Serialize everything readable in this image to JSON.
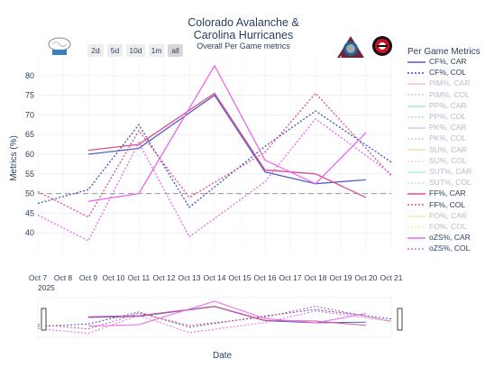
{
  "title_line1": "Colorado Avalanche &",
  "title_line2": "Carolina Hurricanes",
  "subtitle": "Overall Per Game metrics",
  "buttons": [
    {
      "label": "2d",
      "active": false
    },
    {
      "label": "5d",
      "active": false
    },
    {
      "label": "10d",
      "active": false
    },
    {
      "label": "1m",
      "active": false
    },
    {
      "label": "all",
      "active": true
    }
  ],
  "logo_text": "SEAN ELDER",
  "legend_title": "Per Game Metrics",
  "ylabel": "Metrics (%)",
  "xlabel": "Date",
  "year_label": "2025",
  "colors": {
    "car_cf": "#5660c2",
    "col_cf": "#4051c6",
    "pim": "#ee8888",
    "pp": "#55ccaa",
    "pk": "#c888dd",
    "su": "#f4b070",
    "sut": "#55ddcc",
    "ff": "#d85090",
    "fo": "#f0d070",
    "ozs": "#ee66ee"
  },
  "chart_data": {
    "type": "line",
    "x": [
      "Oct 7",
      "Oct 8",
      "Oct 9",
      "Oct 10",
      "Oct 11",
      "Oct 12",
      "Oct 13",
      "Oct 14",
      "Oct 15",
      "Oct 16",
      "Oct 17",
      "Oct 18",
      "Oct 19",
      "Oct 20",
      "Oct 21"
    ],
    "ylim": [
      35,
      85
    ],
    "yticks": [
      40,
      45,
      50,
      55,
      60,
      65,
      70,
      75,
      80
    ],
    "reference_line": 50,
    "series": [
      {
        "name": "CF%, CAR",
        "color": "#5660c2",
        "dash": false,
        "visible": true,
        "x": [
          "Oct 9",
          "Oct 11",
          "Oct 14",
          "Oct 16",
          "Oct 18",
          "Oct 20"
        ],
        "values": [
          60,
          61.5,
          75,
          55.5,
          52.5,
          53.5
        ]
      },
      {
        "name": "CF%, COL",
        "color": "#4051c6",
        "dash": true,
        "visible": true,
        "x": [
          "Oct 7",
          "Oct 9",
          "Oct 11",
          "Oct 13",
          "Oct 16",
          "Oct 18",
          "Oct 21"
        ],
        "values": [
          47.5,
          51,
          67.5,
          46.5,
          62,
          71,
          58
        ]
      },
      {
        "name": "PIM%, CAR",
        "color": "#ee8888",
        "dash": false,
        "visible": false
      },
      {
        "name": "PIM%, COL",
        "color": "#ee8888",
        "dash": true,
        "visible": false
      },
      {
        "name": "PP%, CAR",
        "color": "#55ccaa",
        "dash": false,
        "visible": false
      },
      {
        "name": "PP%, COL",
        "color": "#55ccaa",
        "dash": true,
        "visible": false
      },
      {
        "name": "PK%, CAR",
        "color": "#c888dd",
        "dash": false,
        "visible": false
      },
      {
        "name": "PK%, COL",
        "color": "#c888dd",
        "dash": true,
        "visible": false
      },
      {
        "name": "SU%, CAR",
        "color": "#f4b070",
        "dash": false,
        "visible": false
      },
      {
        "name": "SU%, COL",
        "color": "#f4b070",
        "dash": true,
        "visible": false
      },
      {
        "name": "SUT%, CAR",
        "color": "#55ddcc",
        "dash": false,
        "visible": false
      },
      {
        "name": "SUT%, COL",
        "color": "#55ddcc",
        "dash": true,
        "visible": false
      },
      {
        "name": "FF%, CAR",
        "color": "#d85090",
        "dash": false,
        "visible": true,
        "x": [
          "Oct 9",
          "Oct 11",
          "Oct 14",
          "Oct 16",
          "Oct 18",
          "Oct 20"
        ],
        "values": [
          61,
          62.5,
          75.5,
          56,
          55,
          49
        ]
      },
      {
        "name": "FF%, COL",
        "color": "#d85090",
        "dash": true,
        "visible": true,
        "x": [
          "Oct 7",
          "Oct 9",
          "Oct 11",
          "Oct 13",
          "Oct 16",
          "Oct 18",
          "Oct 21"
        ],
        "values": [
          50.5,
          44,
          66,
          49,
          60.5,
          75.5,
          54.5
        ]
      },
      {
        "name": "FO%, CAR",
        "color": "#f0d070",
        "dash": false,
        "visible": false
      },
      {
        "name": "FO%, COL",
        "color": "#f0d070",
        "dash": true,
        "visible": false
      },
      {
        "name": "oZS%, CAR",
        "color": "#ee66ee",
        "dash": false,
        "visible": true,
        "x": [
          "Oct 9",
          "Oct 11",
          "Oct 14",
          "Oct 16",
          "Oct 18",
          "Oct 20"
        ],
        "values": [
          48,
          50,
          82.5,
          58.5,
          52.5,
          65.5
        ]
      },
      {
        "name": "oZS%, COL",
        "color": "#ee66ee",
        "dash": true,
        "visible": true,
        "x": [
          "Oct 7",
          "Oct 9",
          "Oct 11",
          "Oct 13",
          "Oct 16",
          "Oct 18",
          "Oct 21"
        ],
        "values": [
          44.5,
          38,
          63,
          39,
          53,
          69,
          55
        ]
      }
    ]
  }
}
